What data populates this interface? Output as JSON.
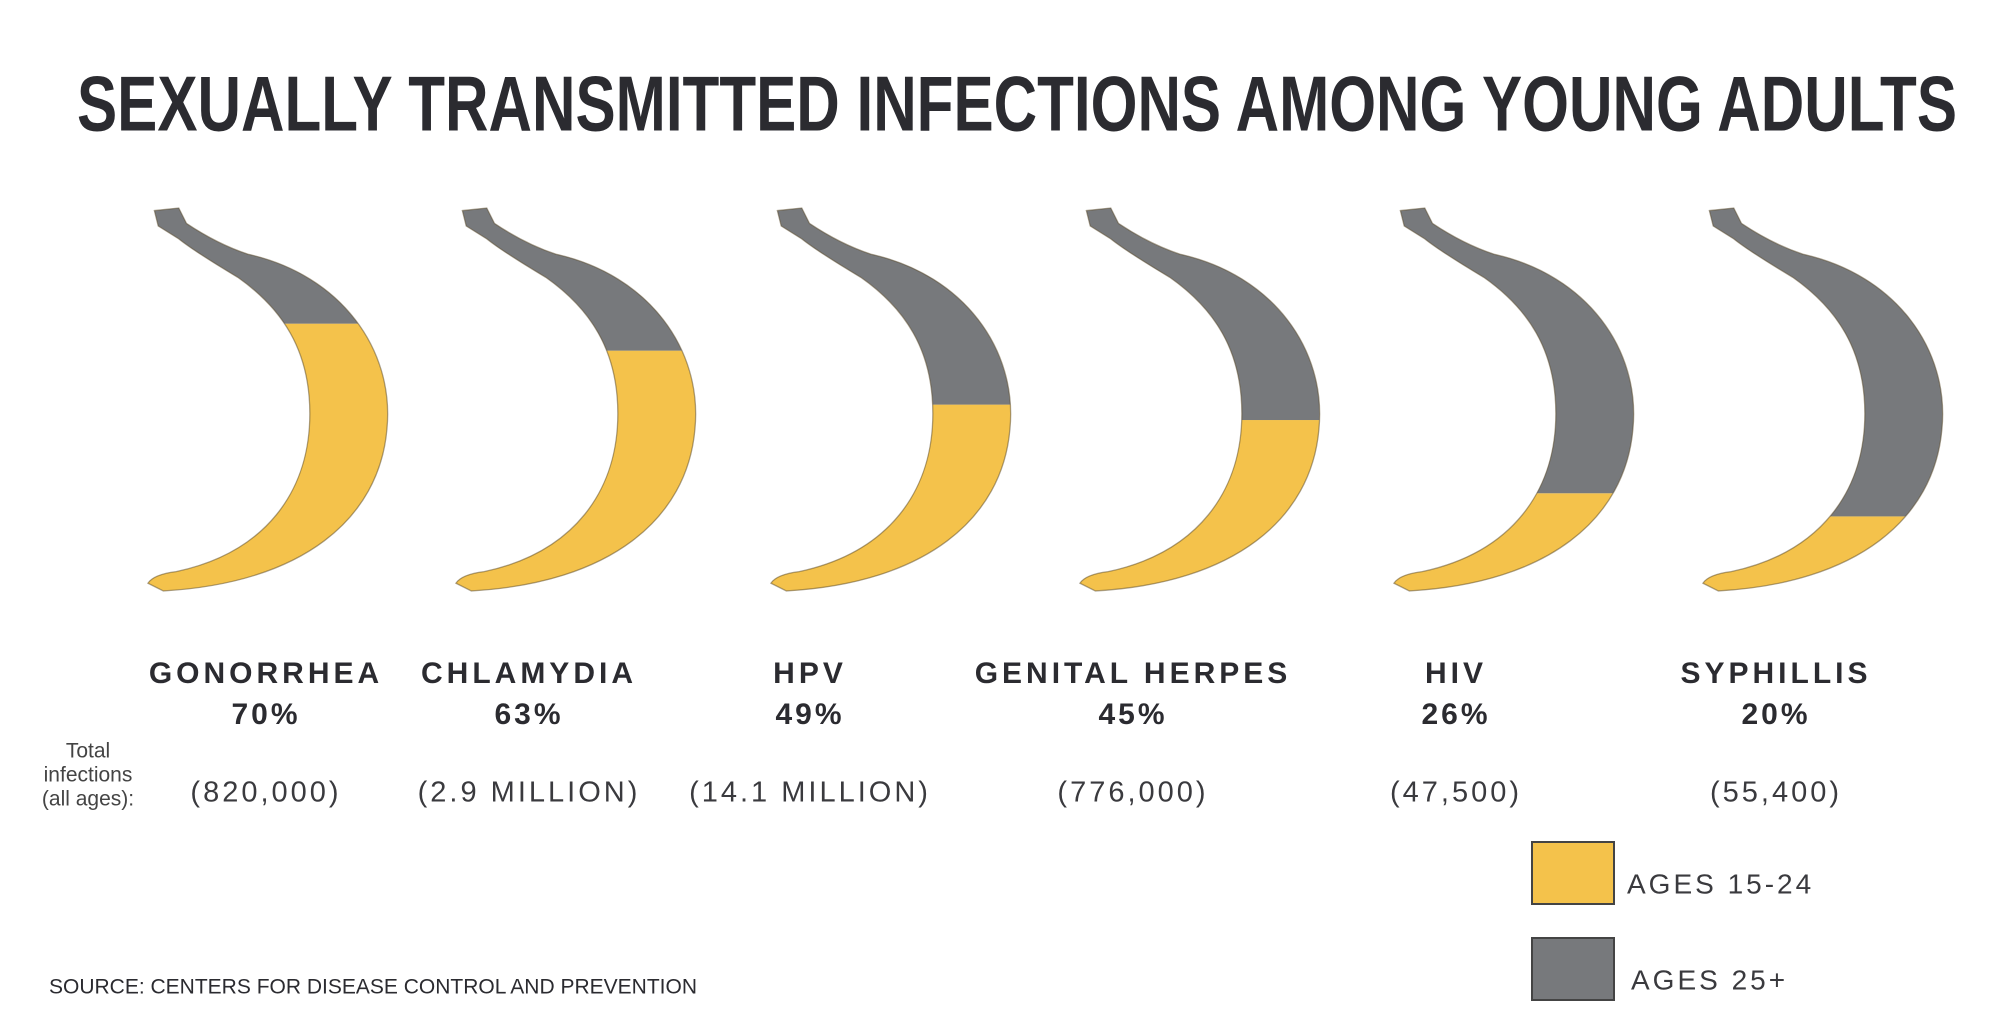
{
  "chart_data": {
    "type": "pictograph",
    "title": "SEXUALLY TRANSMITTED INFECTIONS AMONG YOUNG ADULTS",
    "categories": [
      "GONORRHEA",
      "CHLAMYDIA",
      "HPV",
      "GENITAL HERPES",
      "HIV",
      "SYPHILLIS"
    ],
    "series": [
      {
        "name": "AGES 15-24",
        "color": "#f4c24b",
        "values": [
          70,
          63,
          49,
          45,
          26,
          20
        ],
        "value_labels": [
          "70%",
          "63%",
          "49%",
          "45%",
          "26%",
          "20%"
        ]
      },
      {
        "name": "AGES 25+",
        "color": "#77797c",
        "values": [
          30,
          37,
          51,
          55,
          74,
          80
        ]
      }
    ],
    "ylim": [
      0,
      100
    ],
    "totals": {
      "name": [
        "Total",
        "infections",
        "(all ages):"
      ],
      "values": [
        820000,
        2900000,
        14100000,
        776000,
        47500,
        55400
      ],
      "value_labels": [
        "(820,000)",
        "(2.9 MILLION)",
        "(14.1 MILLION)",
        "(776,000)",
        "(47,500)",
        "(55,400)"
      ]
    },
    "source": "SOURCE: CENTERS FOR DISEASE CONTROL AND PREVENTION"
  }
}
